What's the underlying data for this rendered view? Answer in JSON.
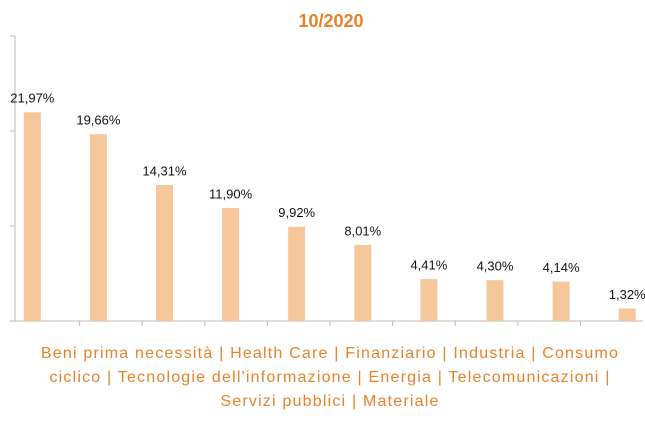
{
  "chart_data": {
    "type": "bar",
    "title": "10/2020",
    "x_label": "Beni prima necessità | Health Care | Finanziario | Industria | Consumo ciclico | Tecnologie dell'informazione | Energia | Telecomunicazioni | Servizi pubblici | Materiale",
    "values": [
      21.97,
      19.66,
      14.31,
      11.9,
      9.92,
      8.01,
      4.41,
      4.3,
      4.14,
      1.32
    ],
    "value_labels": [
      "21,97%",
      "19,66%",
      "14,31%",
      "11,90%",
      "9,92%",
      "8,01%",
      "4,41%",
      "4,30%",
      "4,14%",
      "1,32%"
    ],
    "color": "#f6c79b",
    "ylim": [
      0,
      30
    ],
    "yticks": [
      0,
      10,
      20,
      30
    ]
  }
}
